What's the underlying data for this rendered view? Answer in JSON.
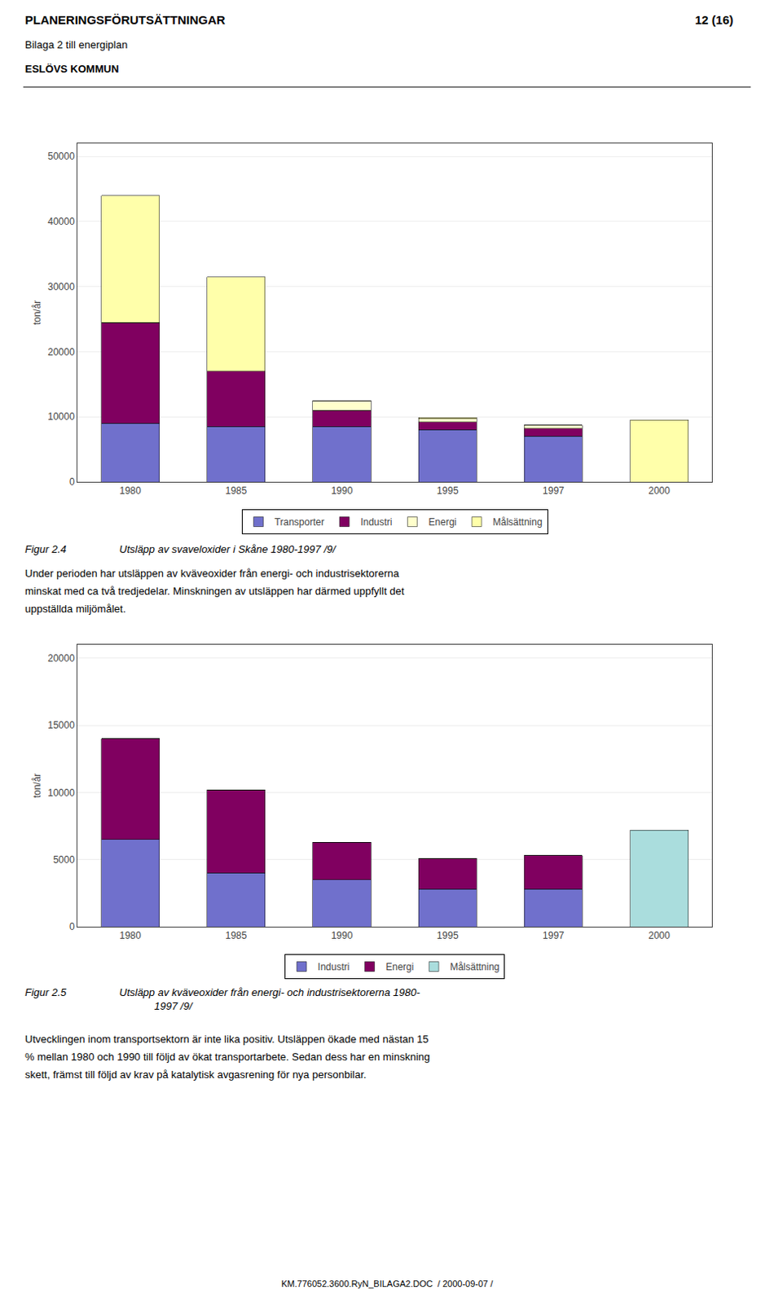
{
  "chart_data": [
    {
      "type": "bar",
      "stacked": true,
      "grid": true,
      "legend": "bottom",
      "categories": [
        "1980",
        "1985",
        "1990",
        "1995",
        "1997",
        "2000"
      ],
      "series": [
        {
          "name": "Transporter",
          "color": "#7070CC",
          "values": [
            9000,
            8500,
            8500,
            8000,
            7000,
            0
          ]
        },
        {
          "name": "Industri",
          "color": "#800060",
          "values": [
            15500,
            8500,
            2500,
            1200,
            1200,
            0
          ]
        },
        {
          "name": "Energi",
          "color": "#FFFFCC",
          "values": [
            0,
            0,
            1500,
            500,
            500,
            0
          ]
        },
        {
          "name": "Målsättning",
          "color": "#FFFFAA",
          "values": [
            19500,
            14500,
            0,
            200,
            0,
            9500
          ]
        }
      ],
      "ylim": [
        0,
        52000
      ],
      "yticks": [
        0,
        10000,
        20000,
        30000,
        40000,
        50000
      ],
      "ylabel": "ton/år",
      "annotations": [
        "PLANERINGSFÖRUTSÄTTNINGAR",
        "12 (16)",
        "Bilaga 2 till energiplan",
        "ESLÖVS KOMMUN",
        "Figur 2.4",
        "Utsläpp av svaveloxider i Skåne 1980-1997 /9/",
        "Under perioden har utsläppen av kväveoxider från energi- och industrisektorerna",
        "minskat med ca två tredjedelar. Minskningen av utsläppen har därmed uppfyllt det",
        "uppställda miljömålet."
      ]
    },
    {
      "type": "bar",
      "stacked": true,
      "grid": true,
      "legend": "bottom",
      "categories": [
        "1980",
        "1985",
        "1990",
        "1995",
        "1997",
        "2000"
      ],
      "series": [
        {
          "name": "Industri",
          "color": "#7070CC",
          "values": [
            6500,
            4000,
            3500,
            2800,
            2800,
            0
          ]
        },
        {
          "name": "Energi",
          "color": "#800060",
          "values": [
            7500,
            6200,
            2800,
            2300,
            2500,
            0
          ]
        },
        {
          "name": "Målsättning",
          "color": "#AADDDD",
          "values": [
            0,
            0,
            0,
            0,
            0,
            7200
          ]
        }
      ],
      "ylim": [
        0,
        21000
      ],
      "yticks": [
        0,
        5000,
        10000,
        15000,
        20000
      ],
      "ylabel": "ton/år",
      "annotations": [
        "Figur 2.5",
        "Utsläpp av kväveoxider från energi- och industrisektorerna 1980-\n            1997 /9/",
        "Utvecklingen inom transportsektorn är inte lika positiv. Utsläppen ökade med nästan 15",
        "% mellan 1980 och 1990 till följd av ökat transportarbete. Sedan dess har en minskning",
        "skett, främst till följd av krav på katalytisk avgasrening för nya personbilar.",
        "KM.776052.3600.RyN_BILAGA2.DOC  / 2000-09-07 /"
      ]
    }
  ]
}
